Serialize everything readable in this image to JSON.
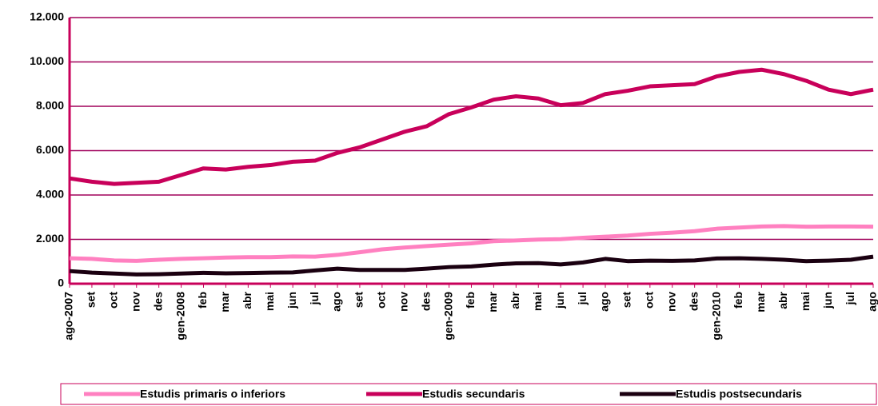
{
  "chart_data": {
    "type": "line",
    "categories": [
      "ago-2007",
      "set",
      "oct",
      "nov",
      "des",
      "gen-2008",
      "feb",
      "mar",
      "abr",
      "mai",
      "jun",
      "jul",
      "ago",
      "set",
      "oct",
      "nov",
      "des",
      "gen-2009",
      "feb",
      "mar",
      "abr",
      "mai",
      "jun",
      "jul",
      "ago",
      "set",
      "oct",
      "nov",
      "des",
      "gen-2010",
      "feb",
      "mar",
      "abr",
      "mai",
      "jun",
      "jul",
      "ago"
    ],
    "series": [
      {
        "name": "Estudis primaris o inferiors",
        "color": "#ff80c0",
        "values": [
          1150,
          1120,
          1050,
          1030,
          1080,
          1120,
          1150,
          1180,
          1200,
          1200,
          1230,
          1220,
          1300,
          1420,
          1550,
          1630,
          1700,
          1760,
          1820,
          1920,
          1950,
          1990,
          2010,
          2070,
          2120,
          2170,
          2250,
          2300,
          2370,
          2480,
          2530,
          2580,
          2600,
          2570,
          2580,
          2580,
          2570
        ]
      },
      {
        "name": "Estudis secundaris",
        "color": "#c8005a",
        "values": [
          4750,
          4600,
          4500,
          4550,
          4600,
          4900,
          5200,
          5150,
          5270,
          5350,
          5500,
          5550,
          5900,
          6150,
          6500,
          6850,
          7100,
          7650,
          7950,
          8300,
          8450,
          8350,
          8050,
          8150,
          8550,
          8700,
          8900,
          8950,
          9000,
          9350,
          9550,
          9650,
          9450,
          9150,
          8750,
          8550,
          8750
        ]
      },
      {
        "name": "Estudis postsecundaris",
        "color": "#1a0010",
        "values": [
          570,
          500,
          460,
          420,
          430,
          460,
          490,
          470,
          480,
          500,
          510,
          600,
          680,
          620,
          620,
          620,
          680,
          750,
          780,
          860,
          920,
          930,
          870,
          960,
          1120,
          1020,
          1040,
          1030,
          1050,
          1140,
          1150,
          1120,
          1080,
          1020,
          1040,
          1080,
          1220
        ]
      }
    ],
    "ylim": [
      0,
      12000
    ],
    "yticks": [
      0,
      {
        "value": 2000,
        "label": "2.000"
      },
      {
        "value": 4000,
        "label": "4.000"
      },
      {
        "value": 6000,
        "label": "6.000"
      },
      {
        "value": 8000,
        "label": "8.000"
      },
      {
        "value": 10000,
        "label": "10.000"
      },
      {
        "value": 12000,
        "label": "12.000"
      }
    ],
    "grid": true,
    "legend": "bottom"
  }
}
